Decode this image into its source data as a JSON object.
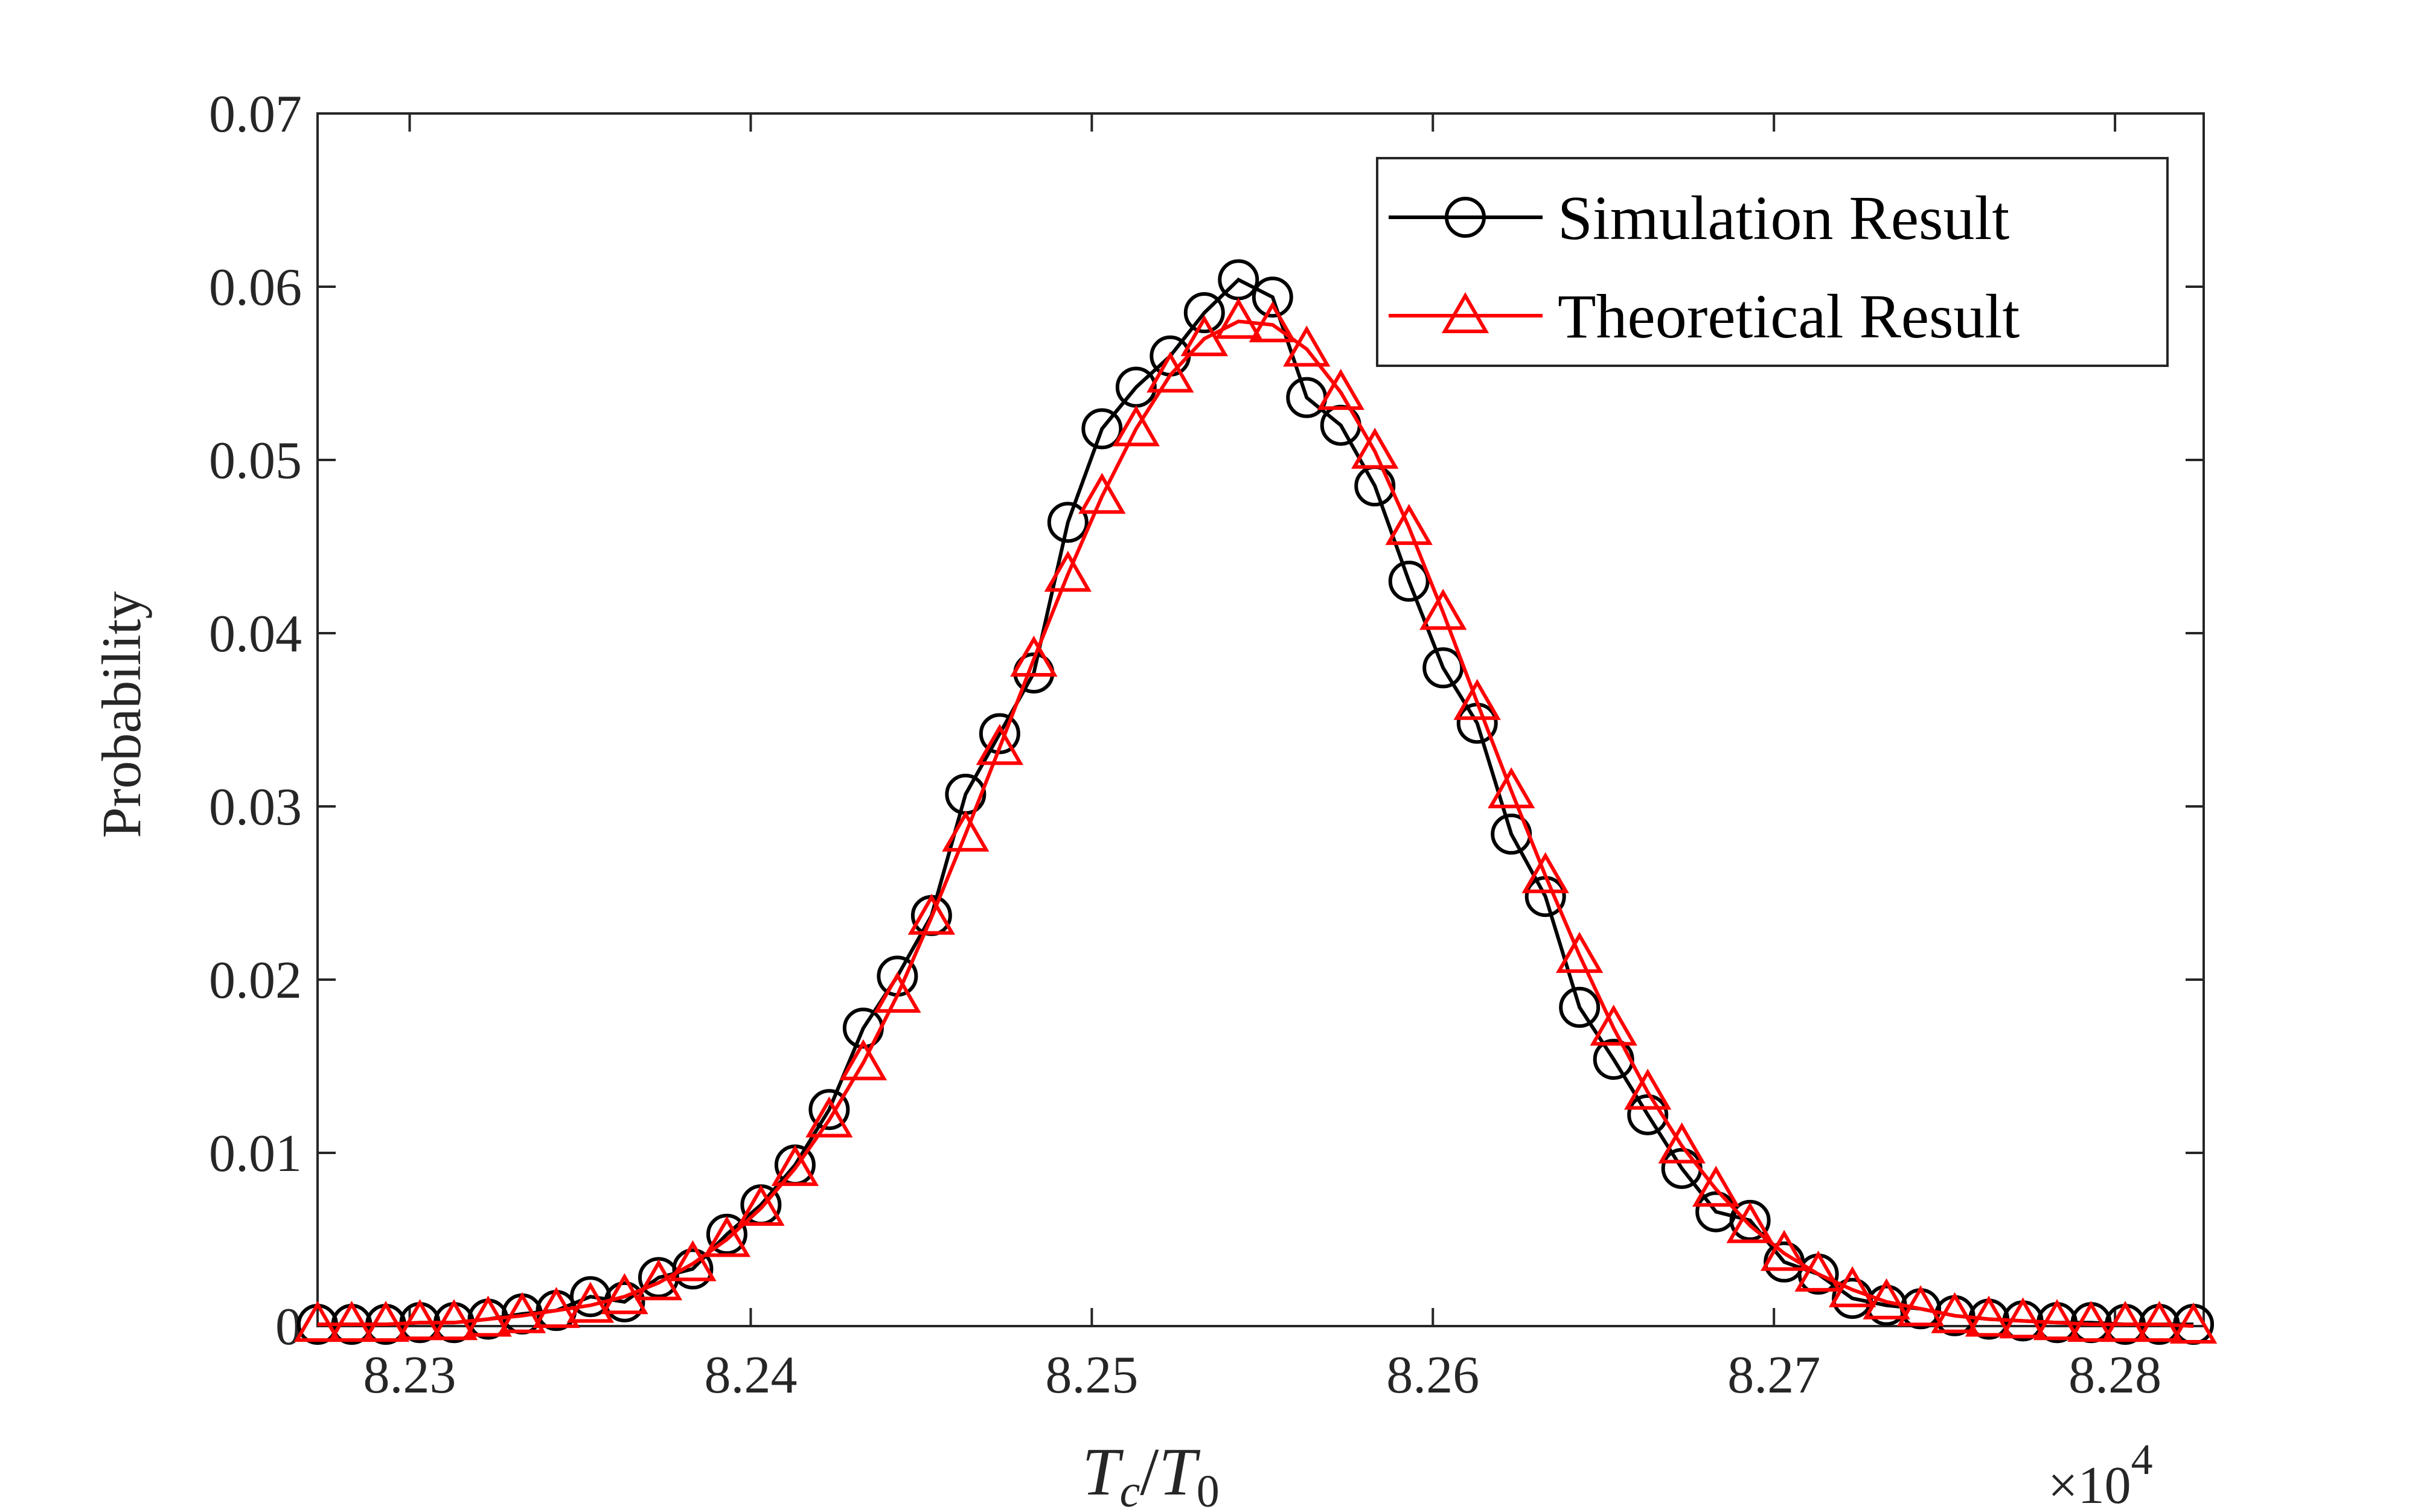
{
  "chart_data": {
    "type": "line",
    "title": "",
    "xlabel": {
      "base1": "T",
      "sub1": "c",
      "slash": "/",
      "base2": "T",
      "sub2": "0"
    },
    "ylabel": "Probability",
    "x_multiplier": {
      "times": "×10",
      "exp": "4"
    },
    "xlim": [
      8.2273,
      8.2826
    ],
    "ylim": [
      0,
      0.07
    ],
    "xticks": [
      8.23,
      8.24,
      8.25,
      8.26,
      8.27,
      8.28
    ],
    "xtick_labels": [
      "8.23",
      "8.24",
      "8.25",
      "8.26",
      "8.27",
      "8.28"
    ],
    "yticks": [
      0,
      0.01,
      0.02,
      0.03,
      0.04,
      0.05,
      0.06,
      0.07
    ],
    "ytick_labels": [
      "0",
      "0.01",
      "0.02",
      "0.03",
      "0.04",
      "0.05",
      "0.06",
      "0.07"
    ],
    "legend_position": "top-right",
    "x": [
      8.2273,
      8.2283,
      8.2293,
      8.2303,
      8.2313,
      8.2323,
      8.2333,
      8.2343,
      8.2353,
      8.2363,
      8.2373,
      8.2383,
      8.2393,
      8.2403,
      8.2413,
      8.2423,
      8.2433,
      8.2443,
      8.2453,
      8.2463,
      8.2473,
      8.2483,
      8.2493,
      8.2503,
      8.2513,
      8.2523,
      8.2533,
      8.2543,
      8.2553,
      8.2563,
      8.2573,
      8.2583,
      8.2593,
      8.2603,
      8.2613,
      8.2623,
      8.2633,
      8.2643,
      8.2653,
      8.2663,
      8.2673,
      8.2683,
      8.2693,
      8.2703,
      8.2713,
      8.2723,
      8.2733,
      8.2743,
      8.2753,
      8.2763,
      8.2773,
      8.2783,
      8.2793,
      8.2803,
      8.2813,
      8.2823
    ],
    "series": [
      {
        "name": "Simulation Result",
        "color": "#000000",
        "marker": "circle",
        "values": [
          0.0001,
          0.0001,
          0.0001,
          0.0002,
          0.0002,
          0.0004,
          0.0007,
          0.0009,
          0.0017,
          0.0014,
          0.0028,
          0.0033,
          0.0053,
          0.007,
          0.0093,
          0.0125,
          0.0172,
          0.0202,
          0.0237,
          0.0307,
          0.0342,
          0.0377,
          0.0464,
          0.0518,
          0.0542,
          0.056,
          0.0585,
          0.0604,
          0.0594,
          0.0536,
          0.052,
          0.0485,
          0.043,
          0.038,
          0.0348,
          0.0284,
          0.0248,
          0.0184,
          0.0154,
          0.0122,
          0.0091,
          0.0066,
          0.0061,
          0.0037,
          0.003,
          0.0016,
          0.0012,
          0.001,
          0.0006,
          0.0004,
          0.0003,
          0.0002,
          0.0002,
          0.0001,
          0.0001,
          0.0001
        ]
      },
      {
        "name": "Theoretical Result",
        "color": "#ff0000",
        "marker": "triangle",
        "values": [
          0.0001,
          0.0001,
          0.0001,
          0.0002,
          0.0002,
          0.0004,
          0.0006,
          0.0009,
          0.0012,
          0.0017,
          0.0025,
          0.0036,
          0.005,
          0.0068,
          0.0091,
          0.0119,
          0.0152,
          0.0191,
          0.0236,
          0.0284,
          0.0334,
          0.0385,
          0.0434,
          0.0479,
          0.0518,
          0.0549,
          0.057,
          0.058,
          0.0578,
          0.0564,
          0.0539,
          0.0505,
          0.0461,
          0.0412,
          0.036,
          0.0309,
          0.026,
          0.0214,
          0.0172,
          0.0135,
          0.0104,
          0.0079,
          0.0058,
          0.0042,
          0.003,
          0.0021,
          0.0014,
          0.001,
          0.0006,
          0.0004,
          0.0003,
          0.0002,
          0.0001,
          0.0001,
          0.0001,
          0.0
        ]
      }
    ]
  }
}
